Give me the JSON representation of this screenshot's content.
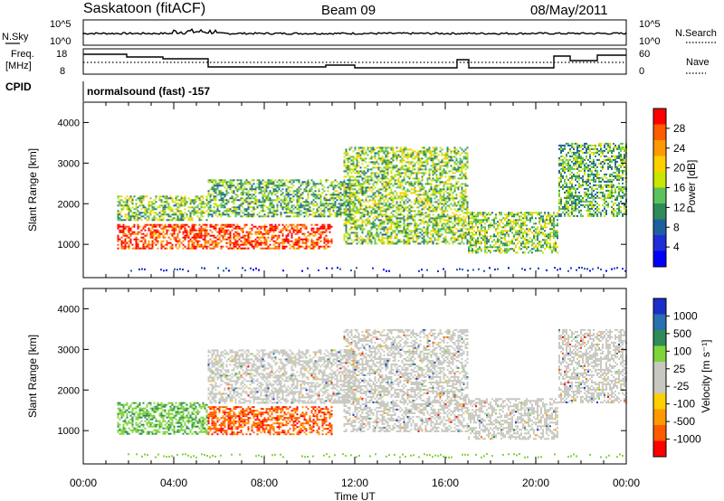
{
  "header": {
    "station": "Saskatoon (fitACF)",
    "beam": "Beam 09",
    "date": "08/May/2011"
  },
  "sky_panel": {
    "left_label": "N.Sky",
    "right_label": "N.Search",
    "left_ticks": [
      "10^5",
      "10^0"
    ],
    "right_ticks": [
      "10^5",
      "10^0"
    ]
  },
  "freq_panel": {
    "left_label_1": "Freq.",
    "left_label_2": "[MHz]",
    "right_label": "Nave",
    "left_ticks": [
      "18",
      "8"
    ],
    "right_ticks": [
      "60",
      "0"
    ]
  },
  "cpid": {
    "label": "CPID",
    "value": "normalsound (fast) -157"
  },
  "colorbars": {
    "power": {
      "title": "Power [dB]",
      "ticks": [
        "28",
        "24",
        "20",
        "16",
        "12",
        "8",
        "4"
      ],
      "colors": [
        "#ff0000",
        "#ff5a00",
        "#ff9900",
        "#ffd000",
        "#c8e600",
        "#5cc25c",
        "#2e8b57",
        "#1f5fa0",
        "#1e2ed8",
        "#0000ff"
      ]
    },
    "velocity": {
      "title": "Velocity [m s⁻¹]",
      "ticks": [
        "1000",
        "500",
        "100",
        "25",
        "-25",
        "-100",
        "-500",
        "-1000"
      ],
      "colors": [
        "#1a2fc8",
        "#2a6fb0",
        "#2e8b57",
        "#7fd43a",
        "#c8c8c0",
        "#c8c8c0",
        "#ffd000",
        "#ff9900",
        "#ff5a00",
        "#ff0000"
      ]
    }
  },
  "chart_data": [
    {
      "type": "heatmap",
      "panel": "power",
      "ylabel": "Slant Range [km]",
      "yticks": [
        "4000",
        "3000",
        "2000",
        "1000"
      ],
      "ylim": [
        180,
        4500
      ],
      "xlim": [
        0,
        24
      ],
      "description_units": "x in hours UT, y in km, value in dB",
      "bands": [
        {
          "x0": 1.5,
          "x1": 11.0,
          "y0": 900,
          "y1": 1500,
          "value": 26
        },
        {
          "x0": 1.5,
          "x1": 5.5,
          "y0": 1600,
          "y1": 2200,
          "value": 14
        },
        {
          "x0": 5.5,
          "x1": 12.0,
          "y0": 1700,
          "y1": 2600,
          "value": 12
        },
        {
          "x0": 11.5,
          "x1": 17.0,
          "y0": 1000,
          "y1": 3400,
          "value": 14
        },
        {
          "x0": 17.0,
          "x1": 21.0,
          "y0": 800,
          "y1": 1800,
          "value": 14
        },
        {
          "x0": 21.0,
          "x1": 24.0,
          "y0": 1700,
          "y1": 3500,
          "value": 12
        }
      ]
    },
    {
      "type": "heatmap",
      "panel": "velocity",
      "ylabel": "Slant Range [km]",
      "yticks": [
        "4000",
        "3000",
        "2000",
        "1000"
      ],
      "ylim": [
        180,
        4500
      ],
      "xlim": [
        0,
        24
      ],
      "description_units": "x in hours UT, y in km, value in m/s",
      "bands": [
        {
          "x0": 1.5,
          "x1": 5.5,
          "y0": 900,
          "y1": 1700,
          "value": 200
        },
        {
          "x0": 5.5,
          "x1": 11.0,
          "y0": 900,
          "y1": 1600,
          "value": -300
        },
        {
          "x0": 5.5,
          "x1": 12.0,
          "y0": 1700,
          "y1": 3000,
          "value": 0
        },
        {
          "x0": 11.5,
          "x1": 17.0,
          "y0": 1000,
          "y1": 3500,
          "value": 0
        },
        {
          "x0": 17.0,
          "x1": 21.0,
          "y0": 800,
          "y1": 1800,
          "value": 0
        },
        {
          "x0": 21.0,
          "x1": 24.0,
          "y0": 1700,
          "y1": 3500,
          "value": 0
        }
      ]
    }
  ],
  "x_axis": {
    "label": "Time UT",
    "ticks": [
      "00:00",
      "04:00",
      "08:00",
      "12:00",
      "16:00",
      "20:00",
      "00:00"
    ]
  }
}
